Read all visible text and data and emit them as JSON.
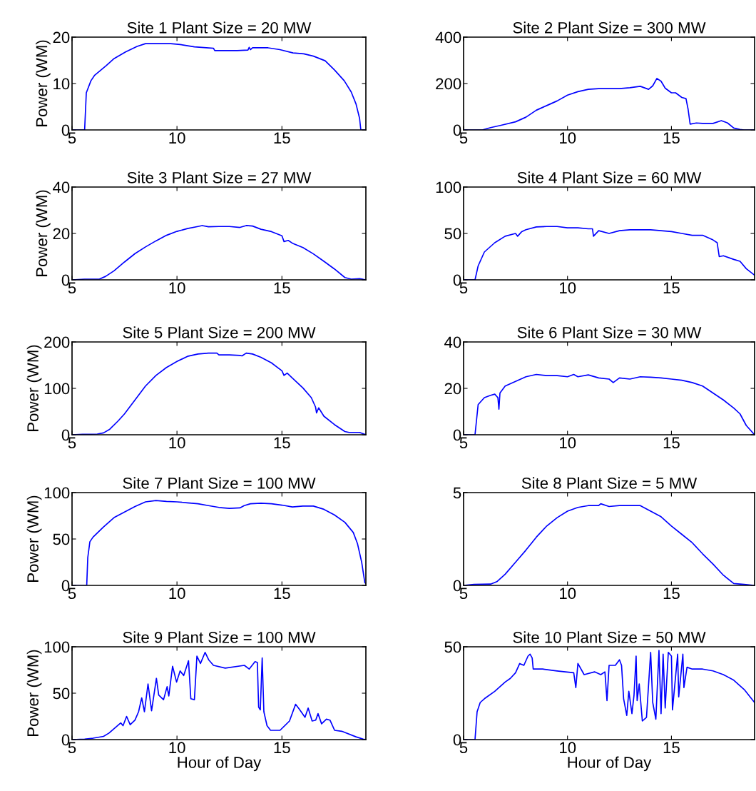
{
  "chart_data": [
    {
      "type": "line",
      "title": "Site 1 Plant Size = 20 MW",
      "ylabel": "Power (WM)",
      "xlim": [
        5,
        19
      ],
      "xticks": [
        5,
        10,
        15
      ],
      "ylim": [
        0,
        20
      ],
      "yticks": [
        0,
        10,
        20
      ],
      "grid": false,
      "x": [
        5,
        5.6,
        5.68,
        5.9,
        6.08,
        6.64,
        6.98,
        7.55,
        8.1,
        8.5,
        9.7,
        10.15,
        10.83,
        11.74,
        11.8,
        12.87,
        13.38,
        13.44,
        13.5,
        13.6,
        14.34,
        14.9,
        15.53,
        16.04,
        16.5,
        17.06,
        17.51,
        17.97,
        18.3,
        18.53,
        18.7,
        18.76,
        19
      ],
      "series": [
        {
          "color": "#0000ff",
          "values": [
            0,
            0,
            8,
            10.6,
            11.8,
            13.9,
            15.3,
            16.8,
            18.0,
            18.6,
            18.6,
            18.4,
            17.9,
            17.6,
            17.1,
            17.1,
            17.2,
            17.8,
            17.3,
            17.7,
            17.7,
            17.3,
            16.6,
            16.4,
            15.9,
            14.9,
            12.9,
            10.6,
            8.2,
            5.6,
            2.5,
            0,
            0
          ]
        }
      ]
    },
    {
      "type": "line",
      "title": "Site 2 Plant Size = 300 MW",
      "xlim": [
        5,
        19
      ],
      "xticks": [
        5,
        10,
        15
      ],
      "ylim": [
        0,
        400
      ],
      "yticks": [
        0,
        200,
        400
      ],
      "grid": false,
      "x": [
        5,
        5.9,
        6.3,
        6.8,
        7.5,
        8.0,
        8.5,
        9.0,
        9.5,
        10.0,
        10.5,
        11.0,
        11.5,
        12.0,
        12.5,
        13.0,
        13.5,
        13.9,
        14.1,
        14.3,
        14.5,
        14.7,
        15.0,
        15.2,
        15.5,
        15.7,
        15.8,
        15.9,
        16.2,
        16.5,
        17.0,
        17.4,
        17.7,
        18.0,
        18.3,
        18.5,
        19
      ],
      "series": [
        {
          "color": "#0000ff",
          "values": [
            0,
            0,
            10,
            20,
            35,
            55,
            85,
            105,
            125,
            150,
            165,
            175,
            178,
            178,
            178,
            182,
            188,
            175,
            190,
            222,
            210,
            180,
            160,
            160,
            140,
            135,
            90,
            25,
            30,
            28,
            28,
            40,
            30,
            8,
            2,
            0,
            0
          ]
        }
      ]
    },
    {
      "type": "line",
      "title": "Site 3 Plant Size = 27 MW",
      "ylabel": "Power (WM)",
      "xlim": [
        5,
        19
      ],
      "xticks": [
        5,
        10,
        15
      ],
      "ylim": [
        0,
        40
      ],
      "yticks": [
        0,
        20,
        40
      ],
      "grid": false,
      "x": [
        5,
        5.6,
        6.3,
        6.6,
        7.0,
        7.5,
        8.0,
        8.5,
        9.0,
        9.5,
        10.0,
        10.5,
        11.0,
        11.2,
        11.5,
        12.0,
        12.5,
        13.0,
        13.3,
        13.6,
        14.0,
        14.5,
        15.0,
        15.1,
        15.3,
        15.5,
        16.0,
        16.5,
        17.0,
        17.5,
        18.0,
        18.3,
        18.7,
        19
      ],
      "series": [
        {
          "color": "#0000ff",
          "values": [
            0,
            0.3,
            0.3,
            1.5,
            3.9,
            7.7,
            11.3,
            14.2,
            16.8,
            19.2,
            20.9,
            22.1,
            23,
            23.4,
            22.9,
            23,
            23.0,
            22.6,
            23.4,
            23.2,
            21.8,
            20.8,
            19.0,
            16.5,
            17.0,
            15.8,
            13.9,
            11.2,
            8.0,
            4.7,
            1.0,
            0.3,
            0.5,
            0
          ]
        }
      ]
    },
    {
      "type": "line",
      "title": "Site 4 Plant Size = 60 MW",
      "xlim": [
        5,
        19
      ],
      "xticks": [
        5,
        10,
        15
      ],
      "ylim": [
        0,
        100
      ],
      "yticks": [
        0,
        50,
        100
      ],
      "grid": false,
      "x": [
        5,
        5.55,
        5.7,
        6.0,
        6.5,
        7.0,
        7.5,
        7.6,
        7.8,
        8.0,
        8.5,
        9.0,
        9.5,
        10.0,
        10.5,
        11.0,
        11.2,
        11.25,
        11.5,
        12.0,
        12.5,
        13.0,
        14.0,
        14.5,
        15.0,
        15.5,
        16.0,
        16.5,
        17.0,
        17.2,
        17.3,
        17.5,
        18.0,
        18.3,
        18.6,
        19.0
      ],
      "series": [
        {
          "color": "#0000ff",
          "values": [
            0,
            0,
            15,
            30,
            40,
            47,
            50,
            47,
            52,
            54,
            57,
            57.5,
            57.5,
            56,
            56,
            55,
            55,
            47,
            53,
            50,
            53,
            54,
            54,
            53,
            52,
            50,
            48,
            48,
            43,
            40,
            25,
            26,
            22,
            20,
            12,
            5
          ]
        }
      ]
    },
    {
      "type": "line",
      "title": "Site 5 Plant Size = 200 MW",
      "ylabel": "Power (WM)",
      "xlim": [
        5,
        19
      ],
      "xticks": [
        5,
        10,
        15
      ],
      "ylim": [
        0,
        200
      ],
      "yticks": [
        0,
        100,
        200
      ],
      "grid": false,
      "x": [
        5,
        5.5,
        6.2,
        6.5,
        6.8,
        7.2,
        7.5,
        8.0,
        8.5,
        9.0,
        9.5,
        10.0,
        10.5,
        11.0,
        11.5,
        11.9,
        12.0,
        12.5,
        13.0,
        13.1,
        13.3,
        13.6,
        14.0,
        14.5,
        15.0,
        15.1,
        15.25,
        15.5,
        16.0,
        16.4,
        16.6,
        16.65,
        16.75,
        17.0,
        17.5,
        18.0,
        18.2,
        18.7,
        19
      ],
      "series": [
        {
          "color": "#0000ff",
          "values": [
            0,
            1,
            1.5,
            4,
            12,
            30,
            45,
            75,
            105,
            128,
            145,
            158,
            169,
            174,
            176,
            176,
            172,
            172,
            171,
            170,
            176,
            174,
            167,
            155,
            138,
            128,
            133,
            122,
            101,
            80,
            60,
            47,
            58,
            40,
            22,
            7,
            5,
            5,
            0
          ]
        }
      ]
    },
    {
      "type": "line",
      "title": "Site 6 Plant Size = 30 MW",
      "xlim": [
        5,
        19
      ],
      "xticks": [
        5,
        10,
        15
      ],
      "ylim": [
        0,
        40
      ],
      "yticks": [
        0,
        20,
        40
      ],
      "grid": false,
      "x": [
        5,
        5.55,
        5.7,
        6.0,
        6.3,
        6.5,
        6.65,
        6.7,
        6.75,
        7.0,
        7.5,
        8.0,
        8.5,
        9.0,
        9.5,
        10.0,
        10.3,
        10.5,
        11.0,
        11.5,
        12.0,
        12.2,
        12.5,
        13.0,
        13.5,
        14.0,
        14.5,
        15.0,
        15.5,
        16.0,
        16.5,
        17.0,
        17.5,
        18.0,
        18.3,
        18.6,
        19.0
      ],
      "series": [
        {
          "color": "#0000ff",
          "values": [
            0,
            0,
            13,
            16,
            17,
            17.5,
            16,
            11,
            18,
            21,
            23,
            25,
            26,
            25.5,
            25.5,
            25,
            26,
            25,
            25.8,
            24.5,
            24,
            22.5,
            24.5,
            24,
            25,
            24.8,
            24.5,
            24,
            23.5,
            22.5,
            21,
            18,
            15,
            11.5,
            9,
            4,
            0
          ]
        }
      ]
    },
    {
      "type": "line",
      "title": "Site 7 Plant Size = 100 MW",
      "ylabel": "Power (WM)",
      "xlim": [
        5,
        19
      ],
      "xticks": [
        5,
        10,
        15
      ],
      "ylim": [
        0,
        100
      ],
      "yticks": [
        0,
        50,
        100
      ],
      "grid": false,
      "x": [
        5,
        5.7,
        5.75,
        5.85,
        6.0,
        6.5,
        7.0,
        7.5,
        8.0,
        8.5,
        9.0,
        9.5,
        10.0,
        10.5,
        11.0,
        11.5,
        12.0,
        12.5,
        13.0,
        13.2,
        13.5,
        14.0,
        14.5,
        15.0,
        15.5,
        16.0,
        16.5,
        17.0,
        17.5,
        18.0,
        18.4,
        18.6,
        18.8,
        18.95,
        19
      ],
      "series": [
        {
          "color": "#0000ff",
          "values": [
            0,
            0,
            30,
            47,
            52,
            63,
            73,
            79,
            85,
            90,
            91.5,
            90.5,
            90,
            89,
            88,
            86,
            84,
            83,
            83.5,
            86,
            88,
            88.5,
            88,
            86.5,
            84.5,
            85.5,
            85.5,
            82,
            76,
            68,
            57,
            45,
            25,
            3,
            2
          ]
        }
      ]
    },
    {
      "type": "line",
      "title": "Site 8 Plant Size = 5 MW",
      "xlim": [
        5,
        19
      ],
      "xticks": [
        5,
        10,
        15
      ],
      "ylim": [
        0,
        5
      ],
      "yticks": [
        0,
        5
      ],
      "grid": false,
      "x": [
        5,
        5.5,
        6.3,
        6.6,
        7.0,
        7.5,
        8.0,
        8.5,
        9.0,
        9.5,
        10.0,
        10.5,
        11.0,
        11.5,
        11.6,
        12.0,
        12.5,
        13.0,
        13.5,
        14.0,
        14.5,
        15.0,
        15.5,
        16.0,
        16.5,
        17.0,
        17.5,
        18.0,
        18.5,
        19.0
      ],
      "series": [
        {
          "color": "#0000ff",
          "values": [
            0,
            0.05,
            0.07,
            0.2,
            0.6,
            1.25,
            1.9,
            2.6,
            3.2,
            3.65,
            4.0,
            4.2,
            4.3,
            4.3,
            4.4,
            4.25,
            4.3,
            4.3,
            4.3,
            4.0,
            3.7,
            3.2,
            2.75,
            2.3,
            1.7,
            1.15,
            0.55,
            0.1,
            0.05,
            0
          ]
        }
      ]
    },
    {
      "type": "line",
      "title": "Site 9 Plant Size = 100 MW",
      "ylabel": "Power (WM)",
      "xlabel": "Hour of Day",
      "xlim": [
        5,
        19
      ],
      "xticks": [
        5,
        10,
        15
      ],
      "ylim": [
        0,
        100
      ],
      "yticks": [
        0,
        50,
        100
      ],
      "grid": false,
      "x": [
        5,
        5.6,
        6.0,
        6.5,
        6.76,
        7.32,
        7.43,
        7.6,
        7.77,
        8.0,
        8.17,
        8.32,
        8.45,
        8.62,
        8.79,
        9.02,
        9.13,
        9.36,
        9.53,
        9.61,
        9.79,
        9.98,
        10.15,
        10.32,
        10.55,
        10.66,
        10.83,
        10.95,
        11.12,
        11.34,
        11.51,
        11.74,
        12.3,
        13.21,
        13.44,
        13.72,
        13.83,
        13.89,
        13.97,
        14.06,
        14.14,
        14.29,
        14.46,
        14.91,
        15.36,
        15.65,
        15.82,
        16.1,
        16.25,
        16.44,
        16.61,
        16.72,
        16.89,
        17.12,
        17.29,
        17.51,
        17.85,
        18.53,
        18.87,
        19
      ],
      "series": [
        {
          "color": "#0000ff",
          "values": [
            0,
            0.5,
            1.5,
            3.5,
            7,
            18,
            15,
            25,
            16,
            21,
            30,
            45,
            30,
            60,
            31,
            66,
            48,
            43,
            57,
            47,
            79,
            62,
            74,
            69,
            85,
            44,
            43,
            90,
            82,
            94,
            86,
            80,
            77,
            80,
            76,
            84,
            83,
            35,
            32,
            88,
            30,
            15,
            10,
            10,
            20,
            38,
            33,
            24,
            34,
            20,
            21,
            28,
            17,
            22,
            21,
            10,
            9,
            3,
            0.5,
            0
          ]
        }
      ]
    },
    {
      "type": "line",
      "title": "Site 10 Plant Size = 50 MW",
      "xlabel": "Hour of Day",
      "xlim": [
        5,
        19
      ],
      "xticks": [
        5,
        10,
        15
      ],
      "ylim": [
        0,
        50
      ],
      "yticks": [
        0,
        50
      ],
      "grid": false,
      "x": [
        5,
        5.55,
        5.65,
        5.8,
        6.0,
        6.5,
        7.0,
        7.25,
        7.5,
        7.7,
        7.9,
        8.1,
        8.2,
        8.3,
        8.35,
        8.8,
        9.5,
        10.3,
        10.4,
        10.5,
        10.8,
        11.3,
        11.6,
        11.8,
        11.9,
        12.0,
        12.3,
        12.5,
        12.6,
        12.7,
        12.85,
        12.95,
        13.1,
        13.2,
        13.3,
        13.35,
        13.45,
        13.6,
        13.8,
        14.0,
        14.1,
        14.25,
        14.4,
        14.5,
        14.6,
        14.7,
        14.85,
        15.0,
        15.05,
        15.3,
        15.35,
        15.55,
        15.6,
        15.75,
        16.0,
        16.5,
        17.0,
        17.5,
        18.0,
        18.5,
        19.0
      ],
      "series": [
        {
          "color": "#0000ff",
          "values": [
            0,
            0,
            15,
            20,
            22,
            26,
            31,
            33,
            36,
            41,
            40,
            45,
            46,
            44,
            38,
            38,
            37,
            36,
            28,
            41,
            35,
            36.5,
            35,
            36.5,
            21,
            40,
            40,
            43,
            40,
            22,
            13,
            26,
            14,
            24,
            45,
            21,
            30,
            10,
            12,
            47,
            20,
            11,
            48,
            14,
            46,
            17,
            47,
            45,
            16,
            46,
            23,
            46,
            28,
            39,
            38,
            38,
            37,
            35,
            32,
            27,
            20
          ]
        }
      ]
    }
  ]
}
